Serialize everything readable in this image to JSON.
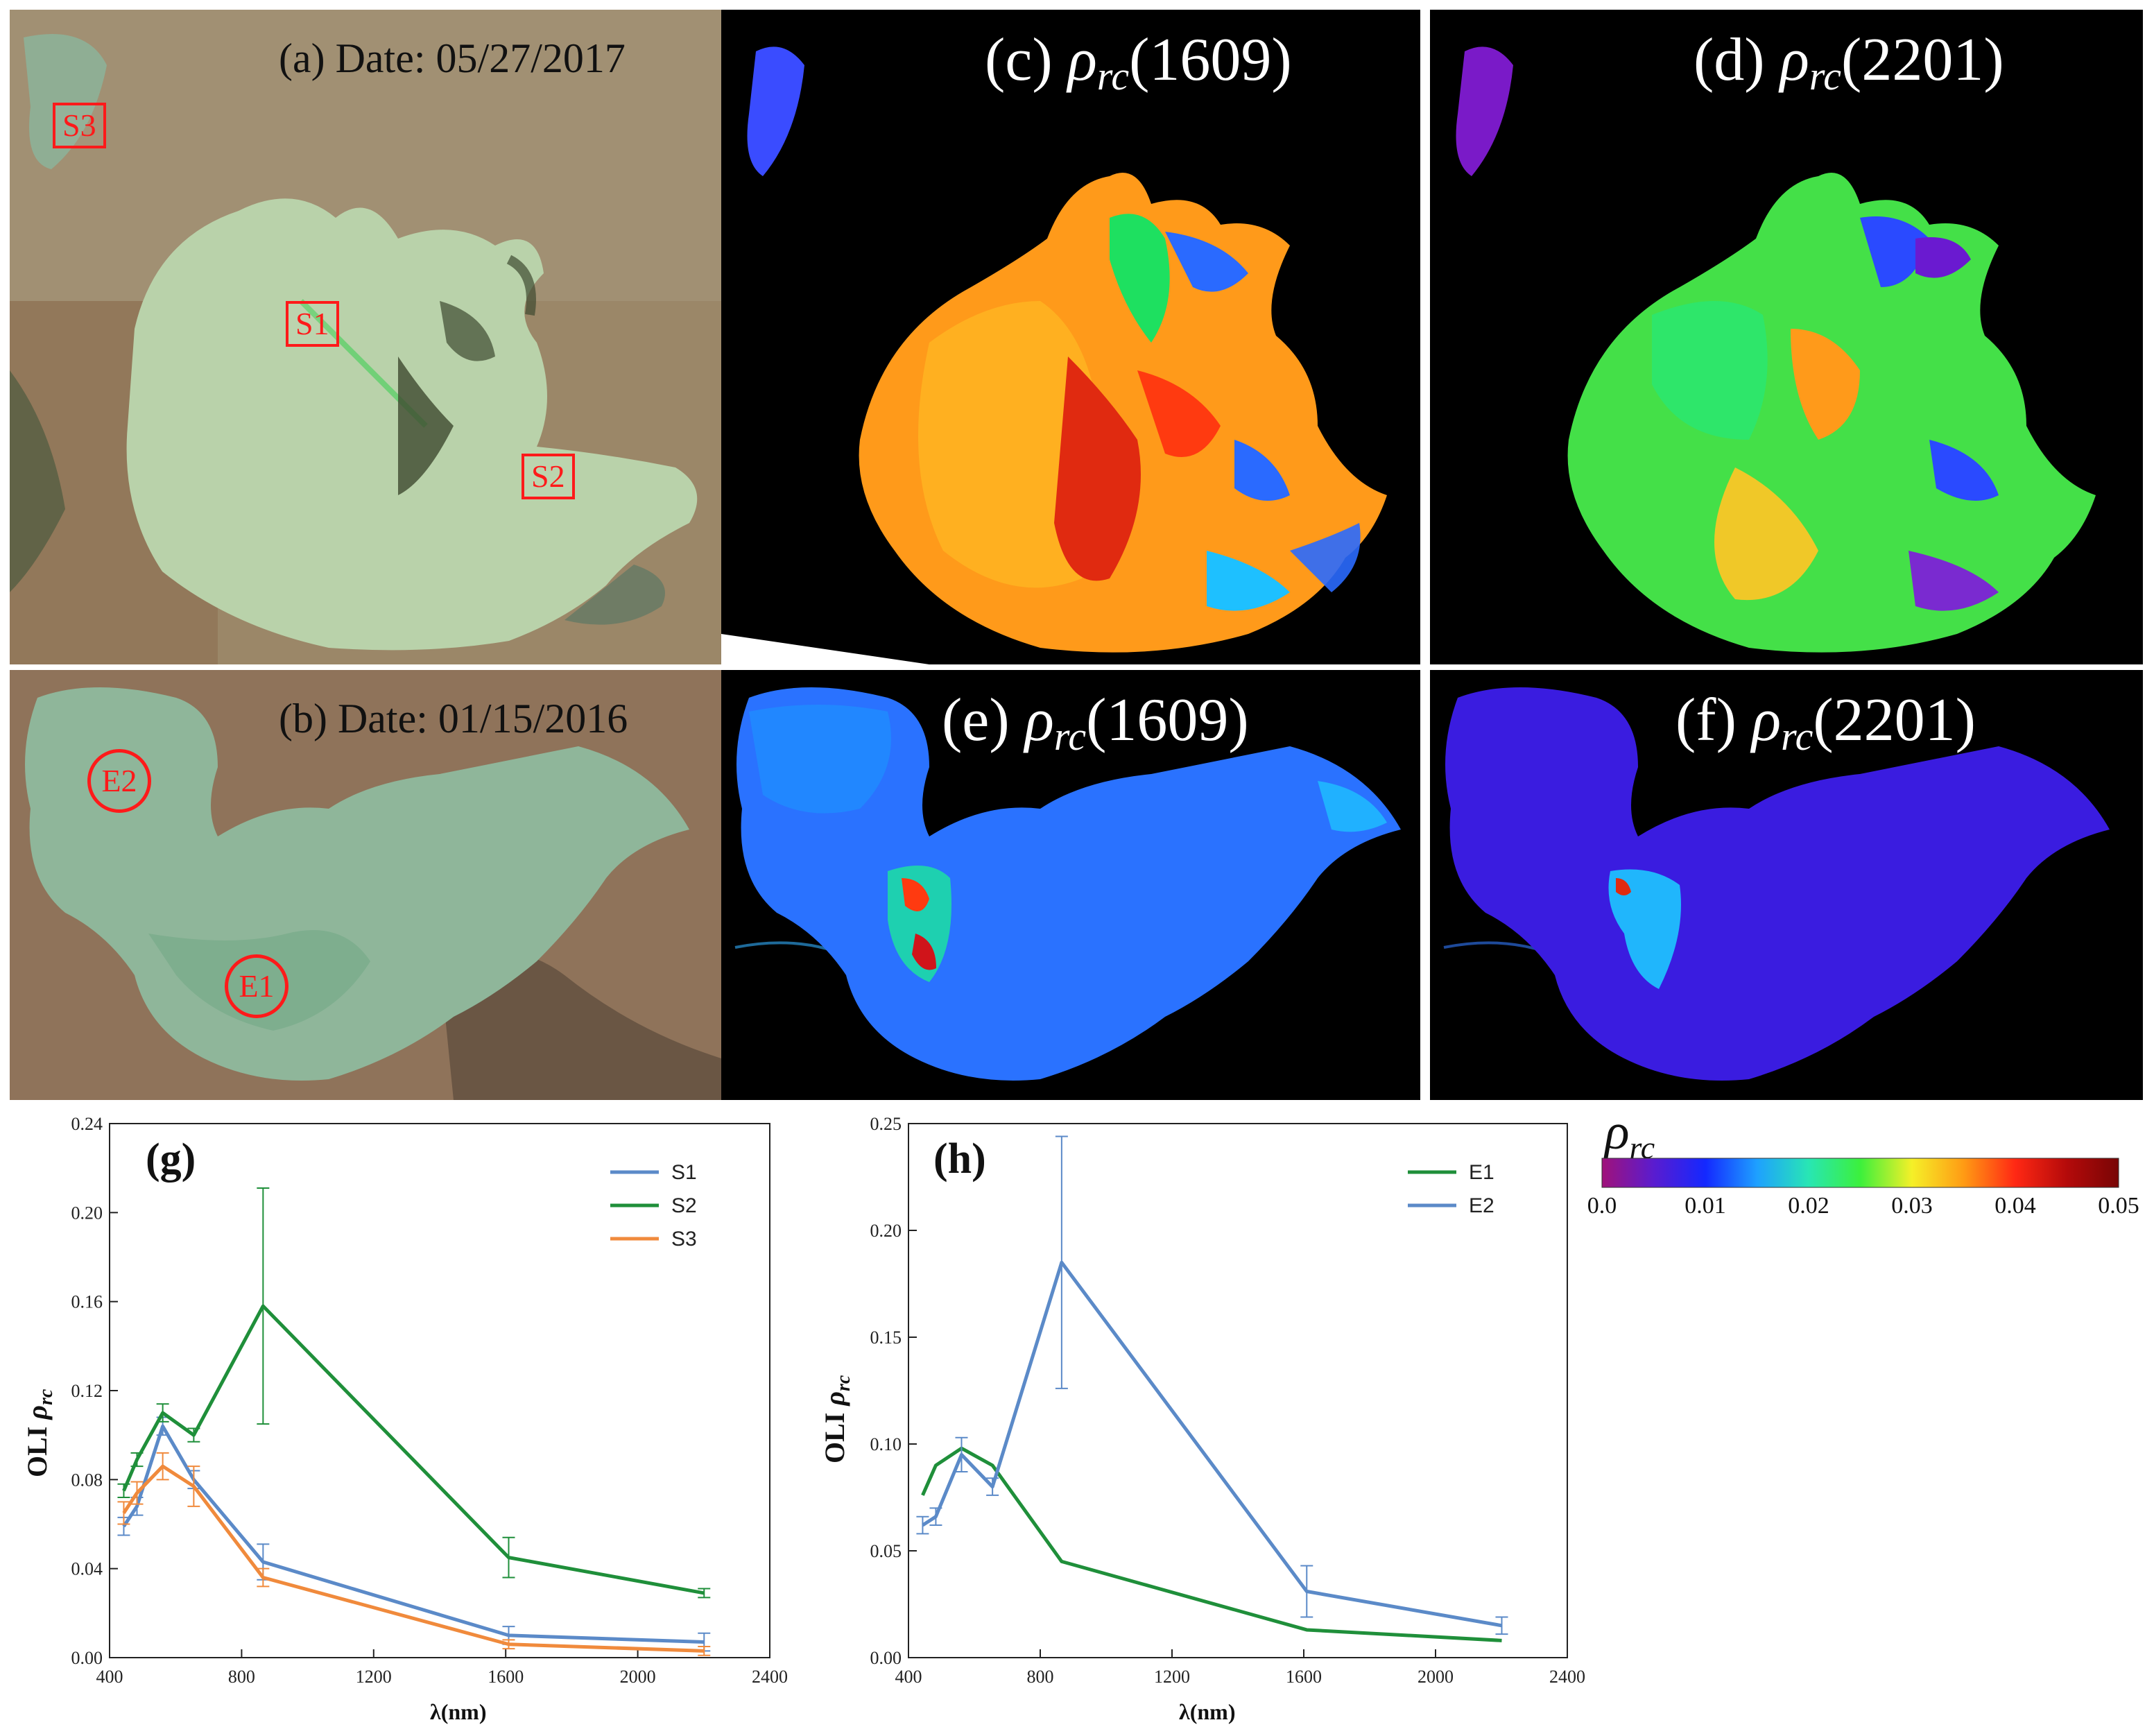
{
  "figure": {
    "panel_a": {
      "label": "(a) Date: 05/27/2017",
      "sites": [
        "S3",
        "S1",
        "S2"
      ]
    },
    "panel_b": {
      "label": "(b) Date: 01/15/2016",
      "sites": [
        "E2",
        "E1"
      ]
    },
    "panel_c": {
      "prefix": "(c) ",
      "rho": "ρ",
      "sub": "rc",
      "suffix": "(1609)"
    },
    "panel_d": {
      "prefix": "(d) ",
      "rho": "ρ",
      "sub": "rc",
      "suffix": "(2201)"
    },
    "panel_e": {
      "prefix": "(e) ",
      "rho": "ρ",
      "sub": "rc",
      "suffix": "(1609)"
    },
    "panel_f": {
      "prefix": "(f) ",
      "rho": "ρ",
      "sub": "rc",
      "suffix": "(2201)"
    },
    "colorbar": {
      "symbol": "ρ",
      "sub": "rc",
      "ticks": [
        "0.0",
        "0.01",
        "0.02",
        "0.03",
        "0.04",
        "0.05"
      ],
      "colors": [
        "#a0127a",
        "#5a1ccf",
        "#1428ff",
        "#1ea0ff",
        "#28e6b4",
        "#3cf03c",
        "#f5f028",
        "#ff9b14",
        "#ff2814",
        "#b40a0a",
        "#780505"
      ]
    }
  },
  "chart_data": [
    {
      "type": "line",
      "tag": "(g)",
      "xlabel": "λ(nm)",
      "ylabel_prefix": "OLI ",
      "ylabel_rho": "ρ",
      "ylabel_sub": "rc",
      "xlim": [
        400,
        2400
      ],
      "ylim": [
        0.0,
        0.24
      ],
      "xticks": [
        400,
        800,
        1200,
        1600,
        2000,
        2400
      ],
      "xtick_labels": [
        "400",
        "800",
        "1200",
        "1600",
        "2000",
        "2400"
      ],
      "yticks": [
        0.0,
        0.04,
        0.08,
        0.12,
        0.16,
        0.2,
        0.24
      ],
      "ytick_labels": [
        "0.00",
        "0.04",
        "0.08",
        "0.12",
        "0.16",
        "0.20",
        "0.24"
      ],
      "legend_position": "top-right",
      "series": [
        {
          "name": "S1",
          "color": "#5b8ac8",
          "x": [
            443,
            483,
            561,
            655,
            865,
            1609,
            2201
          ],
          "values": [
            0.059,
            0.068,
            0.104,
            0.08,
            0.043,
            0.01,
            0.007
          ],
          "errors": [
            0.004,
            0.004,
            0.004,
            0.004,
            0.008,
            0.004,
            0.004
          ]
        },
        {
          "name": "S2",
          "color": "#1f8f3a",
          "x": [
            443,
            483,
            561,
            655,
            865,
            1609,
            2201
          ],
          "values": [
            0.075,
            0.089,
            0.11,
            0.1,
            0.158,
            0.045,
            0.029
          ],
          "errors": [
            0.003,
            0.003,
            0.004,
            0.003,
            0.053,
            0.009,
            0.002
          ]
        },
        {
          "name": "S3",
          "color": "#f08a3c",
          "x": [
            443,
            483,
            561,
            655,
            865,
            1609,
            2201
          ],
          "values": [
            0.065,
            0.074,
            0.086,
            0.077,
            0.036,
            0.006,
            0.003
          ],
          "errors": [
            0.005,
            0.005,
            0.006,
            0.009,
            0.004,
            0.002,
            0.002
          ]
        }
      ]
    },
    {
      "type": "line",
      "tag": "(h)",
      "xlabel": "λ(nm)",
      "ylabel_prefix": "OLI ",
      "ylabel_rho": "ρ",
      "ylabel_sub": "rc",
      "xlim": [
        400,
        2400
      ],
      "ylim": [
        0.0,
        0.25
      ],
      "xticks": [
        400,
        800,
        1200,
        1600,
        2000,
        2400
      ],
      "xtick_labels": [
        "400",
        "800",
        "1200",
        "1600",
        "2000",
        "2400"
      ],
      "yticks": [
        0.0,
        0.05,
        0.1,
        0.15,
        0.2,
        0.25
      ],
      "ytick_labels": [
        "0.00",
        "0.05",
        "0.10",
        "0.15",
        "0.20",
        "0.25"
      ],
      "legend_position": "top-right",
      "series": [
        {
          "name": "E1",
          "color": "#1f8f3a",
          "x": [
            443,
            483,
            561,
            655,
            865,
            1609,
            2201
          ],
          "values": [
            0.076,
            0.09,
            0.098,
            0.09,
            0.045,
            0.013,
            0.008
          ],
          "errors": [
            0.0,
            0.0,
            0.0,
            0.0,
            0.0,
            0.0,
            0.0
          ]
        },
        {
          "name": "E2",
          "color": "#5b8ac8",
          "x": [
            443,
            483,
            561,
            655,
            865,
            1609,
            2201
          ],
          "values": [
            0.062,
            0.066,
            0.095,
            0.08,
            0.185,
            0.031,
            0.015
          ],
          "errors": [
            0.004,
            0.004,
            0.008,
            0.004,
            0.059,
            0.012,
            0.004
          ]
        }
      ]
    }
  ]
}
